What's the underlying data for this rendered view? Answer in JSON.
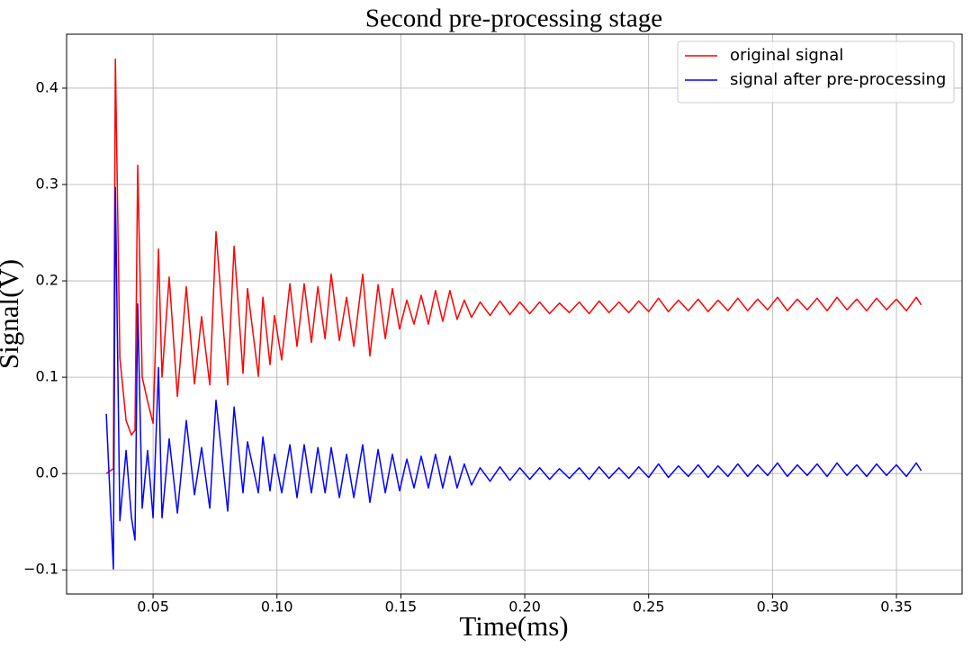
{
  "chart_data": {
    "type": "line",
    "title": "Second pre-processing stage",
    "xlabel": "Time(ms)",
    "ylabel": "Signal(V)",
    "x": [
      0.0311,
      0.0322,
      0.034,
      0.0348,
      0.0366,
      0.0391,
      0.0413,
      0.0427,
      0.0438,
      0.0456,
      0.0478,
      0.05,
      0.0522,
      0.0536,
      0.0565,
      0.0598,
      0.0634,
      0.0667,
      0.0696,
      0.0729,
      0.0754,
      0.0801,
      0.0827,
      0.0863,
      0.0881,
      0.0925,
      0.0943,
      0.0972,
      0.099,
      0.1019,
      0.1052,
      0.1081,
      0.111,
      0.1139,
      0.1165,
      0.1194,
      0.1219,
      0.1252,
      0.1281,
      0.131,
      0.1346,
      0.1375,
      0.1408,
      0.1437,
      0.1466,
      0.1495,
      0.1524,
      0.1553,
      0.1582,
      0.1611,
      0.164,
      0.1669,
      0.1698,
      0.1727,
      0.1756,
      0.1785,
      0.182,
      0.186,
      0.19,
      0.194,
      0.198,
      0.202,
      0.206,
      0.21,
      0.214,
      0.218,
      0.222,
      0.226,
      0.23,
      0.234,
      0.238,
      0.242,
      0.246,
      0.25,
      0.254,
      0.258,
      0.262,
      0.266,
      0.27,
      0.274,
      0.278,
      0.282,
      0.286,
      0.29,
      0.294,
      0.298,
      0.302,
      0.306,
      0.31,
      0.314,
      0.318,
      0.322,
      0.326,
      0.33,
      0.334,
      0.338,
      0.342,
      0.346,
      0.35,
      0.354,
      0.358,
      0.36
    ],
    "series": [
      {
        "name": "original signal",
        "color": "#ff0000",
        "values": [
          0.0,
          0.002,
          0.005,
          0.43,
          0.12,
          0.055,
          0.04,
          0.045,
          0.32,
          0.1,
          0.075,
          0.052,
          0.233,
          0.1,
          0.204,
          0.08,
          0.194,
          0.093,
          0.163,
          0.092,
          0.251,
          0.092,
          0.236,
          0.104,
          0.192,
          0.101,
          0.183,
          0.113,
          0.164,
          0.118,
          0.197,
          0.132,
          0.197,
          0.136,
          0.194,
          0.14,
          0.207,
          0.138,
          0.183,
          0.132,
          0.207,
          0.122,
          0.196,
          0.14,
          0.192,
          0.15,
          0.18,
          0.155,
          0.185,
          0.155,
          0.19,
          0.158,
          0.19,
          0.16,
          0.18,
          0.162,
          0.178,
          0.164,
          0.179,
          0.165,
          0.178,
          0.166,
          0.178,
          0.166,
          0.177,
          0.167,
          0.178,
          0.166,
          0.179,
          0.167,
          0.178,
          0.167,
          0.179,
          0.168,
          0.182,
          0.168,
          0.18,
          0.169,
          0.181,
          0.168,
          0.18,
          0.169,
          0.182,
          0.169,
          0.181,
          0.17,
          0.183,
          0.169,
          0.181,
          0.17,
          0.182,
          0.169,
          0.183,
          0.17,
          0.181,
          0.169,
          0.182,
          0.17,
          0.181,
          0.169,
          0.183,
          0.175
        ]
      },
      {
        "name": "signal after pre-processing",
        "color": "#0000ff",
        "values": [
          0.062,
          0.0,
          -0.099,
          0.297,
          -0.049,
          0.024,
          -0.046,
          -0.069,
          0.176,
          -0.036,
          0.024,
          -0.046,
          0.11,
          -0.046,
          0.036,
          -0.041,
          0.055,
          -0.022,
          0.027,
          -0.036,
          0.076,
          -0.039,
          0.069,
          -0.02,
          0.033,
          -0.02,
          0.038,
          -0.018,
          0.02,
          -0.02,
          0.03,
          -0.025,
          0.03,
          -0.02,
          0.027,
          -0.02,
          0.027,
          -0.025,
          0.02,
          -0.025,
          0.03,
          -0.03,
          0.025,
          -0.02,
          0.02,
          -0.018,
          0.015,
          -0.015,
          0.018,
          -0.015,
          0.02,
          -0.015,
          0.018,
          -0.015,
          0.01,
          -0.012,
          0.006,
          -0.008,
          0.007,
          -0.007,
          0.006,
          -0.006,
          0.006,
          -0.006,
          0.005,
          -0.005,
          0.006,
          -0.006,
          0.007,
          -0.005,
          0.006,
          -0.005,
          0.007,
          -0.004,
          0.01,
          -0.004,
          0.008,
          -0.003,
          0.009,
          -0.004,
          0.008,
          -0.003,
          0.01,
          -0.003,
          0.009,
          -0.002,
          0.011,
          -0.003,
          0.009,
          -0.002,
          0.01,
          -0.003,
          0.011,
          -0.002,
          0.009,
          -0.003,
          0.01,
          -0.002,
          0.009,
          -0.003,
          0.011,
          0.003
        ]
      }
    ],
    "xlim": [
      0.0151,
      0.3765
    ],
    "ylim": [
      -0.125,
      0.456
    ],
    "xticks": [
      0.05,
      {
        "value": 0.1,
        "label": "0.10"
      },
      0.15,
      {
        "value": 0.2,
        "label": "0.20"
      },
      0.25,
      {
        "value": 0.3,
        "label": "0.30"
      },
      0.35
    ],
    "yticks": [
      {
        "value": -0.1,
        "label": "−0.1"
      },
      {
        "value": 0,
        "label": "0.0"
      },
      0.1,
      0.2,
      0.3,
      0.4
    ],
    "grid": true,
    "legend_loc": "upper right"
  }
}
